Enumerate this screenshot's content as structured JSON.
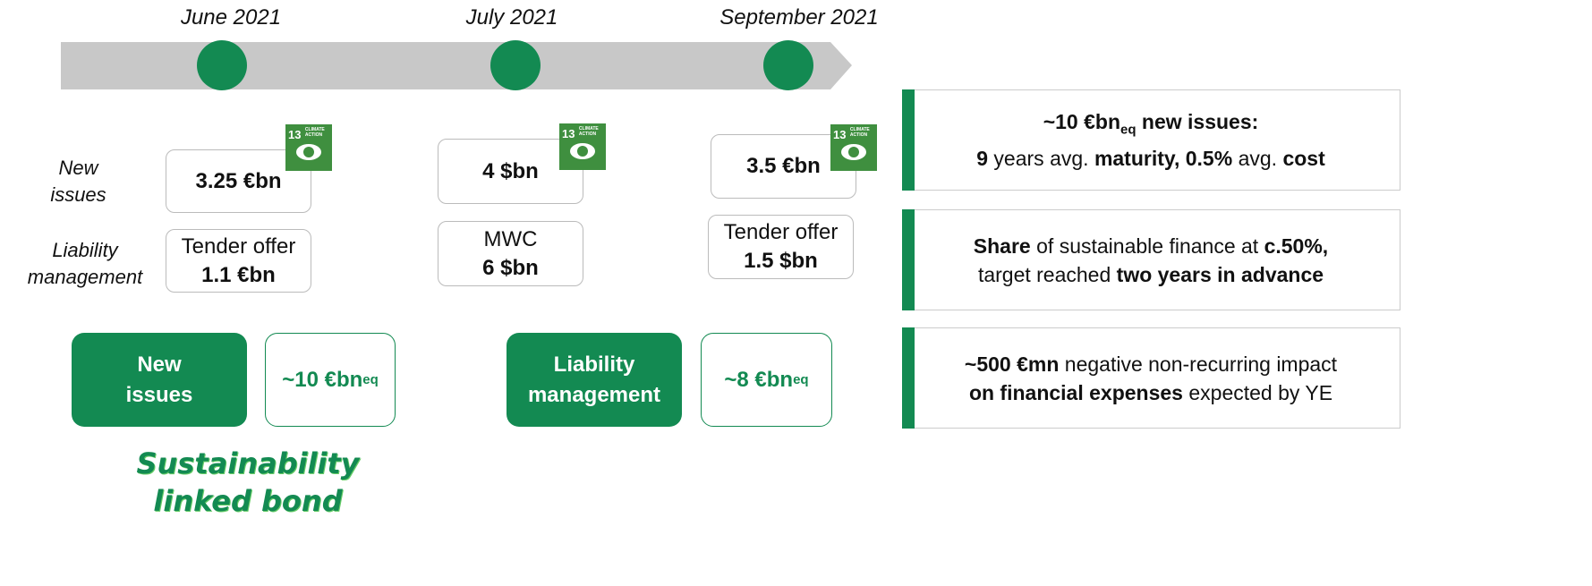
{
  "timeline": {
    "dates": [
      "June 2021",
      "July 2021",
      "September 2021"
    ]
  },
  "row_labels": [
    "New issues",
    "Liability management"
  ],
  "icon": {
    "number": "13",
    "label": "CLIMATE ACTION"
  },
  "new_issues": [
    "3.25 €bn",
    "4 $bn",
    "3.5 €bn"
  ],
  "liability_management": [
    [
      "Tender offer",
      "1.1 €bn"
    ],
    [
      "MWC",
      "6 $bn"
    ],
    [
      "Tender offer",
      "1.5 $bn"
    ]
  ],
  "summary": [
    {
      "label": "New issues",
      "amount": [
        "~10 €bn",
        "eq"
      ]
    },
    {
      "label": "Liability management",
      "amount": [
        "~8 €bn",
        "eq"
      ]
    }
  ],
  "sustainability_note": "Sustainability linked bond",
  "highlights": [
    [
      [
        "~10 €bn",
        "eq",
        " new issues:"
      ],
      [
        "9",
        " years avg. ",
        "maturity, 0.5%",
        " avg. ",
        "cost"
      ]
    ],
    [
      [
        "Share",
        " of sustainable finance at ",
        "c.50%,"
      ],
      [
        "target reached ",
        "two years in advance"
      ]
    ],
    [
      [
        "~500 €mn",
        " negative non-recurring impact"
      ],
      [
        "on financial expenses",
        " expected by YE"
      ]
    ]
  ]
}
